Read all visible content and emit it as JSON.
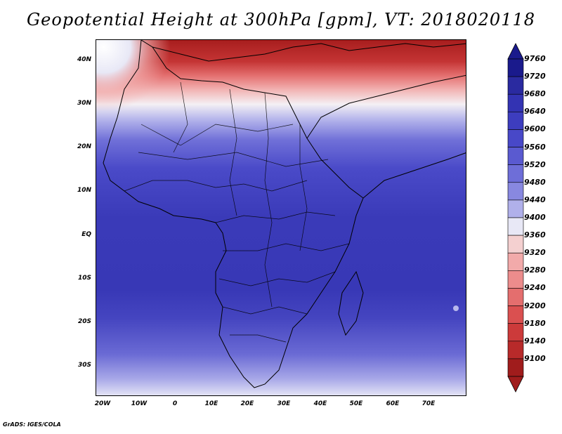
{
  "title": "Geopotential Height at 300hPa [gpm], VT: 2018020118",
  "credit": "GrADS: IGES/COLA",
  "map": {
    "lat_labels": [
      "40N",
      "30N",
      "20N",
      "10N",
      "EQ",
      "10S",
      "20S",
      "30S"
    ],
    "lon_labels": [
      "20W",
      "10W",
      "0",
      "10E",
      "20E",
      "30E",
      "40E",
      "50E",
      "60E",
      "70E"
    ]
  },
  "colorbar": {
    "labels": [
      "9760",
      "9720",
      "9680",
      "9640",
      "9600",
      "9560",
      "9520",
      "9480",
      "9440",
      "9400",
      "9360",
      "9320",
      "9280",
      "9240",
      "9200",
      "9180",
      "9140",
      "9100"
    ],
    "colors": [
      "#1a1a8c",
      "#2a2aa0",
      "#3333b3",
      "#3d3dbf",
      "#4848c8",
      "#5a5ad0",
      "#6e6ed8",
      "#8888e0",
      "#b0b0ea",
      "#e8e8f6",
      "#f4d0d0",
      "#f2aaaa",
      "#ec8c8c",
      "#e46e6e",
      "#da5050",
      "#cc3a3a",
      "#b82a2a",
      "#a01c1c"
    ]
  }
}
